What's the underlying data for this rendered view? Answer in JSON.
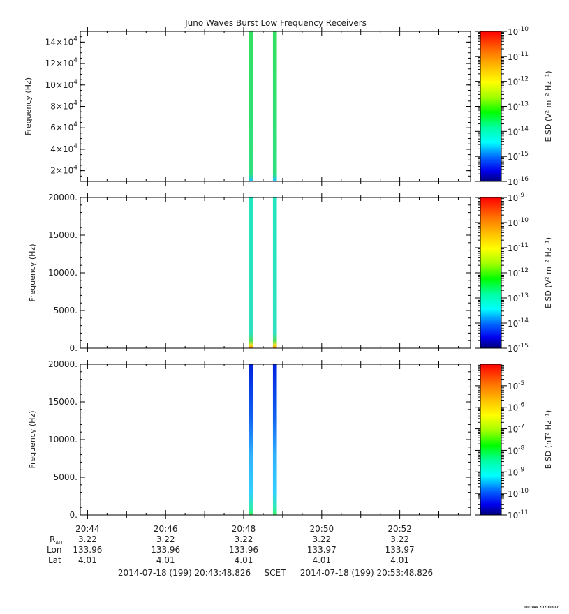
{
  "title": "Juno Waves Burst Low Frequency Receivers",
  "chart_data": [
    {
      "type": "heatmap",
      "panel": "top",
      "ylabel": "Frequency (Hz)",
      "ylim": [
        10000,
        150000
      ],
      "yticks": [
        {
          "v": 20000,
          "m": "2×10",
          "e": "4"
        },
        {
          "v": 40000,
          "m": "4×10",
          "e": "4"
        },
        {
          "v": 60000,
          "m": "6×10",
          "e": "4"
        },
        {
          "v": 80000,
          "m": "8×10",
          "e": "4"
        },
        {
          "v": 100000,
          "m": "10×10",
          "e": "4"
        },
        {
          "v": 120000,
          "m": "12×10",
          "e": "4"
        },
        {
          "v": 140000,
          "m": "14×10",
          "e": "4"
        }
      ],
      "colorbar": {
        "label": "E SD (V² m⁻² Hz⁻¹)",
        "log_range": [
          -16,
          -10
        ],
        "ticks": [
          -16,
          -15,
          -14,
          -13,
          -12,
          -11,
          -10
        ]
      },
      "bursts": [
        {
          "start": "20:48:08",
          "end": "20:48:15",
          "style": "green"
        },
        {
          "start": "20:48:45",
          "end": "20:48:51",
          "style": "green"
        }
      ]
    },
    {
      "type": "heatmap",
      "panel": "middle",
      "ylabel": "Frequency (Hz)",
      "ylim": [
        0,
        20000
      ],
      "yticks": [
        {
          "v": 0,
          "t": "0."
        },
        {
          "v": 5000,
          "t": "5000."
        },
        {
          "v": 10000,
          "t": "10000."
        },
        {
          "v": 15000,
          "t": "15000."
        },
        {
          "v": 20000,
          "t": "20000."
        }
      ],
      "colorbar": {
        "label": "E SD (V² m⁻² Hz⁻¹)",
        "log_range": [
          -15,
          -9
        ],
        "ticks": [
          -15,
          -14,
          -13,
          -12,
          -11,
          -10,
          -9
        ]
      },
      "bursts": [
        {
          "start": "20:48:08",
          "end": "20:48:15",
          "style": "cyan"
        },
        {
          "start": "20:48:45",
          "end": "20:48:51",
          "style": "cyan"
        }
      ]
    },
    {
      "type": "heatmap",
      "panel": "bottom",
      "ylabel": "Frequency (Hz)",
      "ylim": [
        0,
        20000
      ],
      "yticks": [
        {
          "v": 0,
          "t": "0."
        },
        {
          "v": 5000,
          "t": "5000."
        },
        {
          "v": 10000,
          "t": "10000."
        },
        {
          "v": 15000,
          "t": "15000."
        },
        {
          "v": 20000,
          "t": "20000."
        }
      ],
      "colorbar": {
        "label": "B SD (nT² Hz⁻¹)",
        "log_range": [
          -11,
          -4
        ],
        "ticks": [
          -11,
          -10,
          -9,
          -8,
          -7,
          -6,
          -5
        ]
      },
      "bursts": [
        {
          "start": "20:48:08",
          "end": "20:48:15",
          "style": "blue"
        },
        {
          "start": "20:48:45",
          "end": "20:48:51",
          "style": "blue"
        }
      ]
    }
  ],
  "time_axis": {
    "start": "20:43:48.826",
    "end": "20:53:48.826",
    "ticks": [
      {
        "time": "20:44:00",
        "label": "20:44",
        "r": "3.22",
        "lon": "133.96",
        "lat": "4.01"
      },
      {
        "time": "20:46:00",
        "label": "20:46",
        "r": "3.22",
        "lon": "133.96",
        "lat": "4.01"
      },
      {
        "time": "20:48:00",
        "label": "20:48",
        "r": "3.22",
        "lon": "133.96",
        "lat": "4.01"
      },
      {
        "time": "20:50:00",
        "label": "20:50",
        "r": "3.22",
        "lon": "133.97",
        "lat": "4.01"
      },
      {
        "time": "20:52:00",
        "label": "20:52",
        "r": "3.22",
        "lon": "133.97",
        "lat": "4.01"
      }
    ]
  },
  "ephemeris_labels": {
    "r": "R",
    "r_sub": "AU",
    "lon": "Lon",
    "lat": "Lat"
  },
  "range_text": {
    "start": "2014-07-18 (199) 20:43:48.826",
    "mid": "SCET",
    "end": "2014-07-18 (199) 20:53:48.826"
  },
  "credit": "UIOWA 20200307"
}
